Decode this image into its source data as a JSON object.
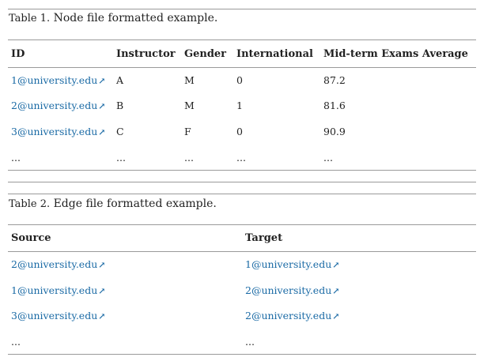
{
  "table1": {
    "caption_label": "Table 1.",
    "caption_text": "Node file formatted example.",
    "headers": [
      "ID",
      "Instructor",
      "Gender",
      "International",
      "Mid-term Exams Average"
    ],
    "rows": [
      [
        "1@university.edu",
        "A",
        "M",
        "0",
        "87.2"
      ],
      [
        "2@university.edu",
        "B",
        "M",
        "1",
        "81.6"
      ],
      [
        "3@university.edu",
        "C",
        "F",
        "0",
        "90.9"
      ],
      [
        "...",
        "...",
        "...",
        "...",
        "..."
      ]
    ]
  },
  "table2": {
    "caption_label": "Table 2.",
    "caption_text": "Edge file formatted example.",
    "headers": [
      "Source",
      "Target"
    ],
    "rows": [
      [
        "2@university.edu",
        "1@university.edu"
      ],
      [
        "1@university.edu",
        "2@university.edu"
      ],
      [
        "3@university.edu",
        "2@university.edu"
      ],
      [
        "...",
        "..."
      ]
    ]
  },
  "icons": {
    "external_link": "external-link-icon"
  },
  "colors": {
    "link": "#1a6aa5",
    "rule": "#9a9a9a"
  }
}
